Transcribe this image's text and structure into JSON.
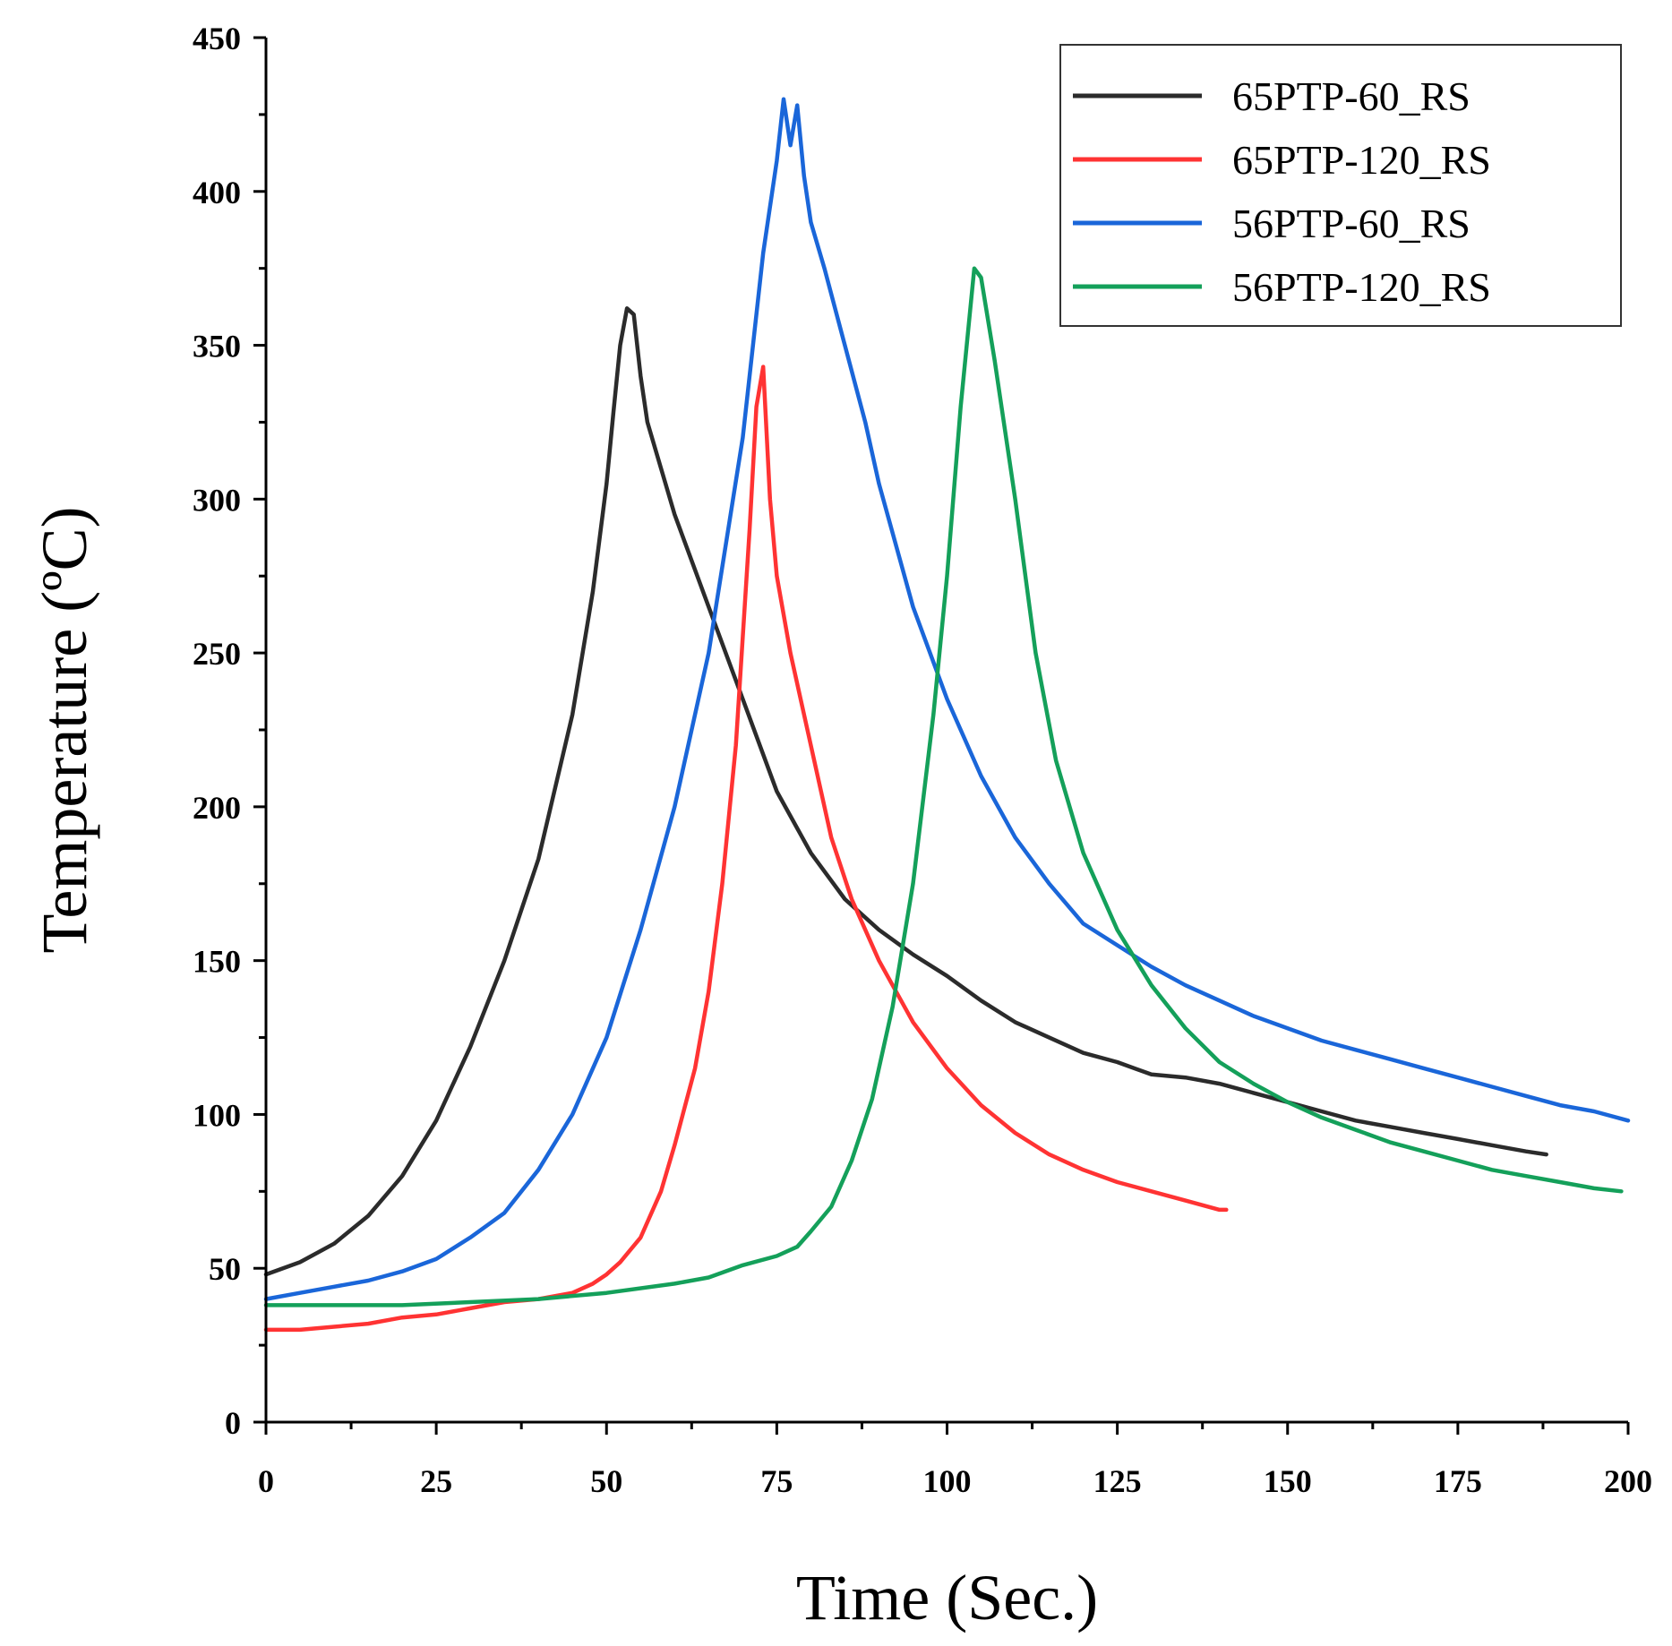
{
  "chart_data": {
    "type": "line",
    "title": "",
    "xlabel": "Time (Sec.)",
    "ylabel": "Temperature (ºC)",
    "xlim": [
      0,
      200
    ],
    "ylim": [
      0,
      450
    ],
    "x_ticks": [
      0,
      25,
      50,
      75,
      100,
      125,
      150,
      175,
      200
    ],
    "y_ticks": [
      0,
      50,
      100,
      150,
      200,
      250,
      300,
      350,
      400,
      450
    ],
    "grid": false,
    "legend_position": "top-right",
    "series": [
      {
        "name": "65PTP-60_RS",
        "color": "#2b2b2b",
        "points": [
          [
            0,
            48
          ],
          [
            5,
            52
          ],
          [
            10,
            58
          ],
          [
            15,
            67
          ],
          [
            20,
            80
          ],
          [
            25,
            98
          ],
          [
            30,
            122
          ],
          [
            35,
            150
          ],
          [
            40,
            183
          ],
          [
            45,
            230
          ],
          [
            48,
            270
          ],
          [
            50,
            305
          ],
          [
            51,
            328
          ],
          [
            52,
            350
          ],
          [
            53,
            362
          ],
          [
            54,
            360
          ],
          [
            55,
            340
          ],
          [
            56,
            325
          ],
          [
            58,
            310
          ],
          [
            60,
            295
          ],
          [
            65,
            265
          ],
          [
            70,
            235
          ],
          [
            75,
            205
          ],
          [
            80,
            185
          ],
          [
            85,
            170
          ],
          [
            90,
            160
          ],
          [
            95,
            152
          ],
          [
            100,
            145
          ],
          [
            105,
            137
          ],
          [
            110,
            130
          ],
          [
            115,
            125
          ],
          [
            120,
            120
          ],
          [
            125,
            117
          ],
          [
            130,
            113
          ],
          [
            135,
            112
          ],
          [
            140,
            110
          ],
          [
            145,
            107
          ],
          [
            150,
            104
          ],
          [
            155,
            101
          ],
          [
            160,
            98
          ],
          [
            165,
            96
          ],
          [
            170,
            94
          ],
          [
            175,
            92
          ],
          [
            180,
            90
          ],
          [
            185,
            88
          ],
          [
            188,
            87
          ]
        ]
      },
      {
        "name": "65PTP-120_RS",
        "color": "#ff3333",
        "points": [
          [
            0,
            30
          ],
          [
            5,
            30
          ],
          [
            10,
            31
          ],
          [
            15,
            32
          ],
          [
            20,
            34
          ],
          [
            25,
            35
          ],
          [
            30,
            37
          ],
          [
            35,
            39
          ],
          [
            40,
            40
          ],
          [
            45,
            42
          ],
          [
            48,
            45
          ],
          [
            50,
            48
          ],
          [
            52,
            52
          ],
          [
            55,
            60
          ],
          [
            58,
            75
          ],
          [
            60,
            90
          ],
          [
            63,
            115
          ],
          [
            65,
            140
          ],
          [
            67,
            175
          ],
          [
            69,
            220
          ],
          [
            71,
            290
          ],
          [
            72,
            330
          ],
          [
            73,
            343
          ],
          [
            74,
            300
          ],
          [
            75,
            275
          ],
          [
            77,
            250
          ],
          [
            80,
            220
          ],
          [
            83,
            190
          ],
          [
            86,
            170
          ],
          [
            90,
            150
          ],
          [
            95,
            130
          ],
          [
            100,
            115
          ],
          [
            105,
            103
          ],
          [
            110,
            94
          ],
          [
            115,
            87
          ],
          [
            120,
            82
          ],
          [
            125,
            78
          ],
          [
            130,
            75
          ],
          [
            135,
            72
          ],
          [
            140,
            69
          ],
          [
            141,
            69
          ]
        ]
      },
      {
        "name": "56PTP-60_RS",
        "color": "#1a66d9",
        "points": [
          [
            0,
            40
          ],
          [
            5,
            42
          ],
          [
            10,
            44
          ],
          [
            15,
            46
          ],
          [
            20,
            49
          ],
          [
            25,
            53
          ],
          [
            30,
            60
          ],
          [
            35,
            68
          ],
          [
            40,
            82
          ],
          [
            45,
            100
          ],
          [
            50,
            125
          ],
          [
            55,
            160
          ],
          [
            60,
            200
          ],
          [
            65,
            250
          ],
          [
            70,
            320
          ],
          [
            73,
            380
          ],
          [
            75,
            410
          ],
          [
            76,
            430
          ],
          [
            77,
            415
          ],
          [
            78,
            428
          ],
          [
            79,
            405
          ],
          [
            80,
            390
          ],
          [
            82,
            375
          ],
          [
            85,
            350
          ],
          [
            88,
            325
          ],
          [
            90,
            305
          ],
          [
            95,
            265
          ],
          [
            100,
            235
          ],
          [
            105,
            210
          ],
          [
            110,
            190
          ],
          [
            115,
            175
          ],
          [
            120,
            162
          ],
          [
            125,
            155
          ],
          [
            130,
            148
          ],
          [
            135,
            142
          ],
          [
            140,
            137
          ],
          [
            145,
            132
          ],
          [
            150,
            128
          ],
          [
            155,
            124
          ],
          [
            160,
            121
          ],
          [
            165,
            118
          ],
          [
            170,
            115
          ],
          [
            175,
            112
          ],
          [
            180,
            109
          ],
          [
            185,
            106
          ],
          [
            190,
            103
          ],
          [
            195,
            101
          ],
          [
            200,
            98
          ]
        ]
      },
      {
        "name": "56PTP-120_RS",
        "color": "#14a05a",
        "points": [
          [
            0,
            38
          ],
          [
            10,
            38
          ],
          [
            20,
            38
          ],
          [
            30,
            39
          ],
          [
            40,
            40
          ],
          [
            50,
            42
          ],
          [
            60,
            45
          ],
          [
            65,
            47
          ],
          [
            70,
            51
          ],
          [
            75,
            54
          ],
          [
            78,
            57
          ],
          [
            80,
            62
          ],
          [
            83,
            70
          ],
          [
            86,
            85
          ],
          [
            89,
            105
          ],
          [
            92,
            135
          ],
          [
            95,
            175
          ],
          [
            98,
            230
          ],
          [
            100,
            275
          ],
          [
            102,
            330
          ],
          [
            104,
            375
          ],
          [
            105,
            372
          ],
          [
            107,
            345
          ],
          [
            110,
            300
          ],
          [
            113,
            250
          ],
          [
            116,
            215
          ],
          [
            120,
            185
          ],
          [
            125,
            160
          ],
          [
            130,
            142
          ],
          [
            135,
            128
          ],
          [
            140,
            117
          ],
          [
            145,
            110
          ],
          [
            150,
            104
          ],
          [
            155,
            99
          ],
          [
            160,
            95
          ],
          [
            165,
            91
          ],
          [
            170,
            88
          ],
          [
            175,
            85
          ],
          [
            180,
            82
          ],
          [
            185,
            80
          ],
          [
            190,
            78
          ],
          [
            195,
            76
          ],
          [
            199,
            75
          ]
        ]
      }
    ]
  }
}
